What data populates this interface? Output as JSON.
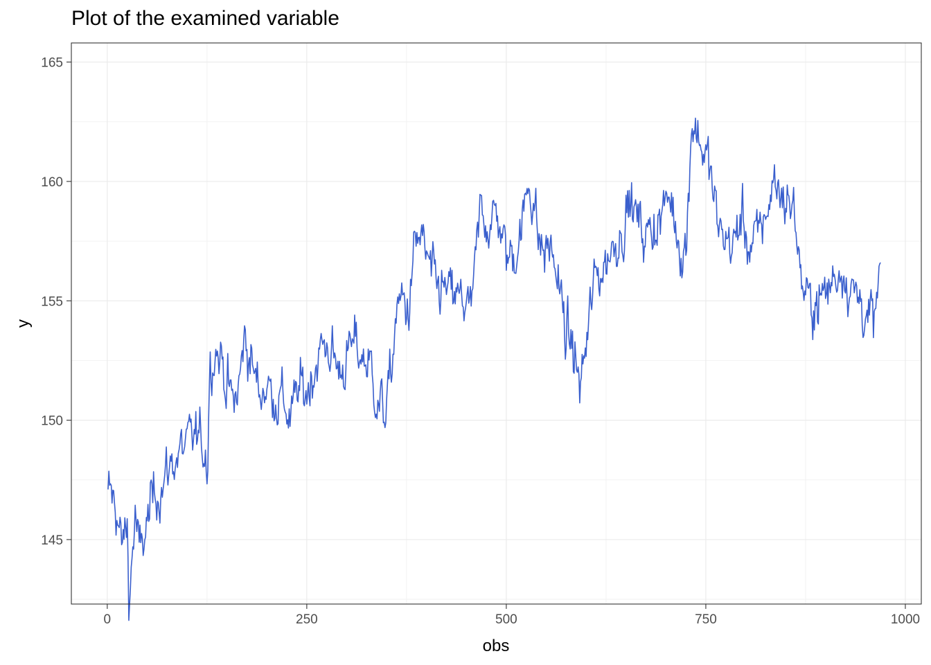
{
  "title": "Plot of the examined variable",
  "chart_data": {
    "type": "line",
    "title": "Plot of the examined variable",
    "xlabel": "obs",
    "ylabel": "y",
    "xlim": [
      -45,
      1020
    ],
    "ylim": [
      142.3,
      165.8
    ],
    "xticks": [
      0,
      250,
      500,
      750,
      1000
    ],
    "yticks": [
      145,
      150,
      155,
      160,
      165
    ],
    "grid": true,
    "line_color": "#3a5fcd",
    "n_points": 969,
    "anchors": [
      {
        "x": 1,
        "y": 147.1
      },
      {
        "x": 8,
        "y": 146.6
      },
      {
        "x": 12,
        "y": 146.2
      },
      {
        "x": 18,
        "y": 144.6
      },
      {
        "x": 25,
        "y": 145.6
      },
      {
        "x": 27,
        "y": 142.5
      },
      {
        "x": 35,
        "y": 146.0
      },
      {
        "x": 40,
        "y": 144.3
      },
      {
        "x": 50,
        "y": 145.6
      },
      {
        "x": 55,
        "y": 146.5
      },
      {
        "x": 60,
        "y": 147.1
      },
      {
        "x": 70,
        "y": 147.3
      },
      {
        "x": 80,
        "y": 148.2
      },
      {
        "x": 90,
        "y": 148.6
      },
      {
        "x": 100,
        "y": 148.9
      },
      {
        "x": 110,
        "y": 149.3
      },
      {
        "x": 120,
        "y": 149.0
      },
      {
        "x": 126,
        "y": 148.3
      },
      {
        "x": 128,
        "y": 152.2
      },
      {
        "x": 135,
        "y": 153.1
      },
      {
        "x": 145,
        "y": 152.4
      },
      {
        "x": 150,
        "y": 151.5
      },
      {
        "x": 158,
        "y": 150.6
      },
      {
        "x": 165,
        "y": 151.4
      },
      {
        "x": 172,
        "y": 153.5
      },
      {
        "x": 180,
        "y": 152.5
      },
      {
        "x": 190,
        "y": 151.2
      },
      {
        "x": 200,
        "y": 151.5
      },
      {
        "x": 210,
        "y": 151.0
      },
      {
        "x": 220,
        "y": 150.9
      },
      {
        "x": 230,
        "y": 150.0
      },
      {
        "x": 240,
        "y": 151.3
      },
      {
        "x": 250,
        "y": 151.2
      },
      {
        "x": 260,
        "y": 152.3
      },
      {
        "x": 270,
        "y": 153.1
      },
      {
        "x": 280,
        "y": 153.0
      },
      {
        "x": 290,
        "y": 152.0
      },
      {
        "x": 300,
        "y": 152.6
      },
      {
        "x": 310,
        "y": 153.2
      },
      {
        "x": 320,
        "y": 152.6
      },
      {
        "x": 330,
        "y": 152.3
      },
      {
        "x": 340,
        "y": 150.6
      },
      {
        "x": 348,
        "y": 150.4
      },
      {
        "x": 355,
        "y": 151.6
      },
      {
        "x": 362,
        "y": 154.5
      },
      {
        "x": 370,
        "y": 155.0
      },
      {
        "x": 378,
        "y": 154.6
      },
      {
        "x": 385,
        "y": 157.2
      },
      {
        "x": 392,
        "y": 157.7
      },
      {
        "x": 400,
        "y": 156.8
      },
      {
        "x": 410,
        "y": 155.6
      },
      {
        "x": 420,
        "y": 155.5
      },
      {
        "x": 430,
        "y": 155.2
      },
      {
        "x": 440,
        "y": 155.0
      },
      {
        "x": 450,
        "y": 155.0
      },
      {
        "x": 455,
        "y": 154.3
      },
      {
        "x": 460,
        "y": 155.9
      },
      {
        "x": 468,
        "y": 158.9
      },
      {
        "x": 478,
        "y": 158.3
      },
      {
        "x": 490,
        "y": 158.6
      },
      {
        "x": 500,
        "y": 156.8
      },
      {
        "x": 510,
        "y": 157.0
      },
      {
        "x": 520,
        "y": 158.2
      },
      {
        "x": 528,
        "y": 160.0
      },
      {
        "x": 535,
        "y": 159.3
      },
      {
        "x": 540,
        "y": 157.5
      },
      {
        "x": 548,
        "y": 157.0
      },
      {
        "x": 556,
        "y": 157.3
      },
      {
        "x": 565,
        "y": 155.8
      },
      {
        "x": 575,
        "y": 153.6
      },
      {
        "x": 585,
        "y": 152.8
      },
      {
        "x": 592,
        "y": 151.4
      },
      {
        "x": 600,
        "y": 153.0
      },
      {
        "x": 610,
        "y": 155.8
      },
      {
        "x": 622,
        "y": 156.5
      },
      {
        "x": 635,
        "y": 157.4
      },
      {
        "x": 645,
        "y": 158.0
      },
      {
        "x": 655,
        "y": 159.2
      },
      {
        "x": 665,
        "y": 158.3
      },
      {
        "x": 675,
        "y": 157.7
      },
      {
        "x": 685,
        "y": 158.2
      },
      {
        "x": 695,
        "y": 158.6
      },
      {
        "x": 705,
        "y": 159.4
      },
      {
        "x": 712,
        "y": 158.3
      },
      {
        "x": 720,
        "y": 157.1
      },
      {
        "x": 726,
        "y": 157.4
      },
      {
        "x": 732,
        "y": 162.7
      },
      {
        "x": 740,
        "y": 162.0
      },
      {
        "x": 748,
        "y": 161.2
      },
      {
        "x": 755,
        "y": 160.5
      },
      {
        "x": 765,
        "y": 158.1
      },
      {
        "x": 775,
        "y": 157.6
      },
      {
        "x": 785,
        "y": 157.3
      },
      {
        "x": 795,
        "y": 158.6
      },
      {
        "x": 805,
        "y": 157.2
      },
      {
        "x": 815,
        "y": 157.6
      },
      {
        "x": 825,
        "y": 158.6
      },
      {
        "x": 835,
        "y": 160.1
      },
      {
        "x": 845,
        "y": 159.4
      },
      {
        "x": 855,
        "y": 159.2
      },
      {
        "x": 862,
        "y": 158.5
      },
      {
        "x": 870,
        "y": 155.8
      },
      {
        "x": 878,
        "y": 154.8
      },
      {
        "x": 886,
        "y": 155.0
      },
      {
        "x": 895,
        "y": 155.1
      },
      {
        "x": 905,
        "y": 155.6
      },
      {
        "x": 915,
        "y": 156.2
      },
      {
        "x": 922,
        "y": 156.5
      },
      {
        "x": 930,
        "y": 155.6
      },
      {
        "x": 938,
        "y": 155.2
      },
      {
        "x": 946,
        "y": 155.0
      },
      {
        "x": 954,
        "y": 154.0
      },
      {
        "x": 962,
        "y": 154.2
      },
      {
        "x": 969,
        "y": 156.6
      }
    ]
  }
}
